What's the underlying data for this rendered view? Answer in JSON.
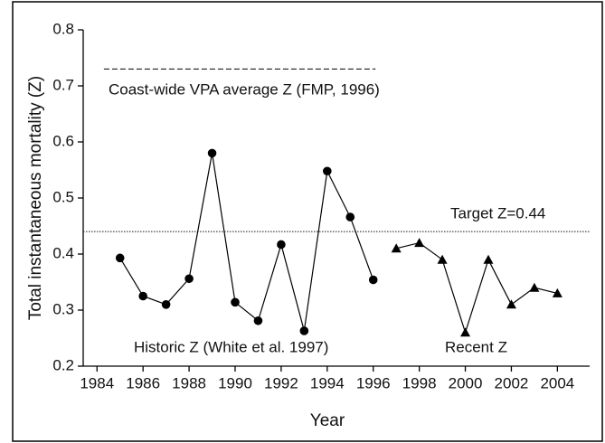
{
  "chart_data": {
    "type": "line",
    "x_label": "Year",
    "y_label": "Total instantaneous mortality (Z)",
    "xlim": [
      1983.4,
      2005.4
    ],
    "ylim": [
      0.2,
      0.8
    ],
    "xticks": [
      1984,
      1986,
      1988,
      1990,
      1992,
      1994,
      1996,
      1998,
      2000,
      2002,
      2004
    ],
    "yticks": [
      0.2,
      0.3,
      0.4,
      0.5,
      0.6,
      0.7,
      0.8
    ],
    "series": [
      {
        "name": "Historic Z (White et al. 1997)",
        "marker": "circle",
        "color": "#000000",
        "x": [
          1985,
          1986,
          1987,
          1988,
          1989,
          1990,
          1991,
          1992,
          1993,
          1994,
          1995,
          1996
        ],
        "values": [
          0.393,
          0.325,
          0.31,
          0.356,
          0.58,
          0.314,
          0.281,
          0.417,
          0.263,
          0.548,
          0.466,
          0.354
        ]
      },
      {
        "name": "Recent Z",
        "marker": "triangle",
        "color": "#000000",
        "x": [
          1997,
          1998,
          1999,
          2000,
          2001,
          2002,
          2003,
          2004
        ],
        "values": [
          0.41,
          0.42,
          0.39,
          0.26,
          0.39,
          0.31,
          0.34,
          0.33
        ]
      }
    ],
    "reference_lines": [
      {
        "label": "Coast-wide VPA average Z (FMP, 1996)",
        "value": 0.73,
        "style": "dashed",
        "x_range": [
          1984.3,
          1996.1
        ]
      },
      {
        "label": "Target Z=0.44",
        "value": 0.44,
        "style": "dotted"
      }
    ]
  }
}
